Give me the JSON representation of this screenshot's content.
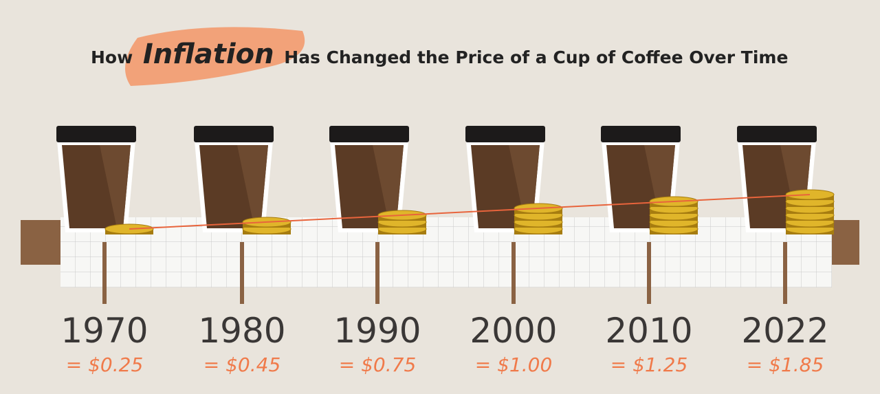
{
  "header": {
    "title_prefix": "How",
    "highlight": "Inflation",
    "title_suffix": "Has Changed the Price of a Cup of Coffee Over Time"
  },
  "items": [
    {
      "year": "1970",
      "price": "= $0.25"
    },
    {
      "year": "1980",
      "price": "= $0.45"
    },
    {
      "year": "1990",
      "price": "= $0.75"
    },
    {
      "year": "2000",
      "price": "= $1.00"
    },
    {
      "year": "2010",
      "price": "= $1.25"
    },
    {
      "year": "2022",
      "price": "= $1.85"
    }
  ]
}
